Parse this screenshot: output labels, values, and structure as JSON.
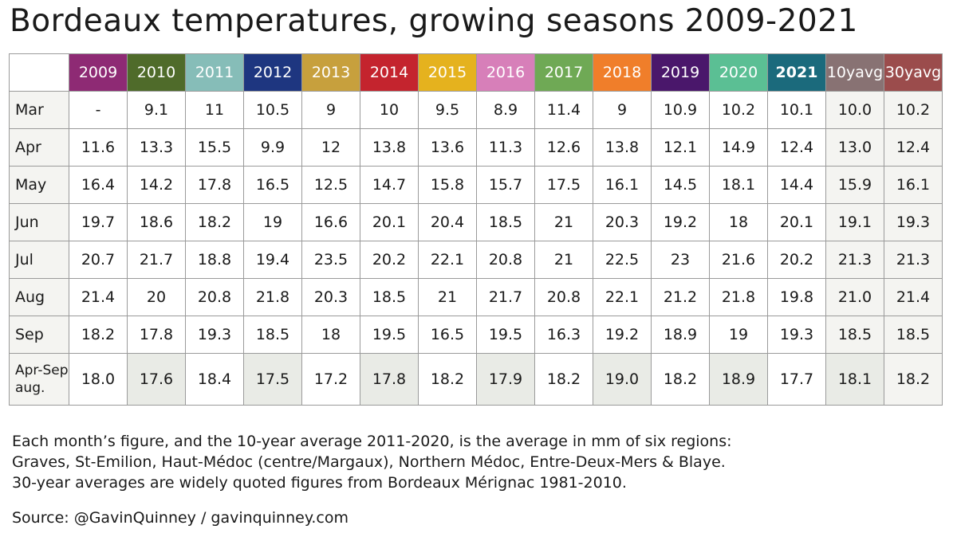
{
  "title": "Bordeaux temperatures, growing seasons 2009-2021",
  "chart_data": {
    "type": "table",
    "title": "Bordeaux temperatures, growing seasons 2009-2021",
    "columns": [
      {
        "label": "2009",
        "color": "#8e2a74"
      },
      {
        "label": "2010",
        "color": "#4f6b2a"
      },
      {
        "label": "2011",
        "color": "#86bdb8"
      },
      {
        "label": "2012",
        "color": "#1e3680"
      },
      {
        "label": "2013",
        "color": "#c7a03d"
      },
      {
        "label": "2014",
        "color": "#c4242e"
      },
      {
        "label": "2015",
        "color": "#e5b21e"
      },
      {
        "label": "2016",
        "color": "#d77fb9"
      },
      {
        "label": "2017",
        "color": "#6fa955"
      },
      {
        "label": "2018",
        "color": "#f07e2a"
      },
      {
        "label": "2019",
        "color": "#4a176b"
      },
      {
        "label": "2020",
        "color": "#5bbf94"
      },
      {
        "label": "2021",
        "color": "#1b6a7c"
      },
      {
        "label": "10yavg",
        "color": "#887273"
      },
      {
        "label": "30yavg",
        "color": "#9b4c4c"
      }
    ],
    "rows": [
      {
        "label": "Mar",
        "values": [
          "-",
          "9.1",
          "11",
          "10.5",
          "9",
          "10",
          "9.5",
          "8.9",
          "11.4",
          "9",
          "10.9",
          "10.2",
          "10.1",
          "10.0",
          "10.2"
        ]
      },
      {
        "label": "Apr",
        "values": [
          "11.6",
          "13.3",
          "15.5",
          "9.9",
          "12",
          "13.8",
          "13.6",
          "11.3",
          "12.6",
          "13.8",
          "12.1",
          "14.9",
          "12.4",
          "13.0",
          "12.4"
        ]
      },
      {
        "label": "May",
        "values": [
          "16.4",
          "14.2",
          "17.8",
          "16.5",
          "12.5",
          "14.7",
          "15.8",
          "15.7",
          "17.5",
          "16.1",
          "14.5",
          "18.1",
          "14.4",
          "15.9",
          "16.1"
        ]
      },
      {
        "label": "Jun",
        "values": [
          "19.7",
          "18.6",
          "18.2",
          "19",
          "16.6",
          "20.1",
          "20.4",
          "18.5",
          "21",
          "20.3",
          "19.2",
          "18",
          "20.1",
          "19.1",
          "19.3"
        ]
      },
      {
        "label": "Jul",
        "values": [
          "20.7",
          "21.7",
          "18.8",
          "19.4",
          "23.5",
          "20.2",
          "22.1",
          "20.8",
          "21",
          "22.5",
          "23",
          "21.6",
          "20.2",
          "21.3",
          "21.3"
        ]
      },
      {
        "label": "Aug",
        "values": [
          "21.4",
          "20",
          "20.8",
          "21.8",
          "20.3",
          "18.5",
          "21",
          "21.7",
          "20.8",
          "22.1",
          "21.2",
          "21.8",
          "19.8",
          "21.0",
          "21.4"
        ]
      },
      {
        "label": "Sep",
        "values": [
          "18.2",
          "17.8",
          "19.3",
          "18.5",
          "18",
          "19.5",
          "16.5",
          "19.5",
          "16.3",
          "19.2",
          "18.9",
          "19",
          "19.3",
          "18.5",
          "18.5"
        ]
      },
      {
        "label": "Apr-Sep aug.",
        "values": [
          "18.0",
          "17.6",
          "18.4",
          "17.5",
          "17.2",
          "17.8",
          "18.2",
          "17.9",
          "18.2",
          "19.0",
          "18.2",
          "18.9",
          "17.7",
          "18.1",
          "18.2"
        ]
      }
    ],
    "bold_column": "2021"
  },
  "notes": [
    "Each month’s figure, and the 10-year average 2011-2020, is the average in mm of six regions:",
    "Graves, St-Emilion, Haut-Médoc (centre/Margaux), Northern Médoc, Entre-Deux-Mers & Blaye.",
    "30-year averages are widely quoted figures from Bordeaux Mérignac 1981-2010."
  ],
  "source": "Source: @GavinQuinney / gavinquinney.com"
}
